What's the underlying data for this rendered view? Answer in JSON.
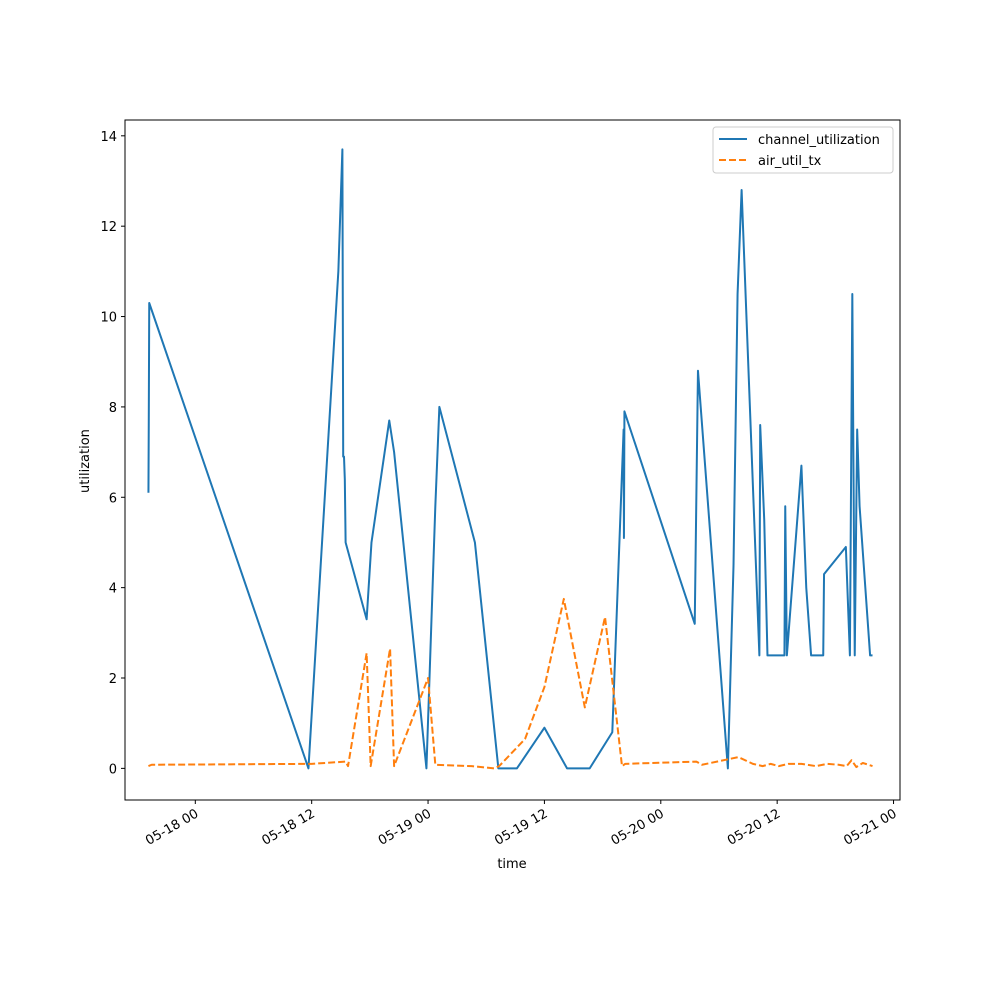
{
  "chart_data": {
    "type": "line",
    "title": "",
    "xlabel": "time",
    "ylabel": "utilization",
    "x_ticks": [
      {
        "t": "2023-05-18T00:00",
        "label": "05-18 00"
      },
      {
        "t": "2023-05-18T12:00",
        "label": "05-18 12"
      },
      {
        "t": "2023-05-19T00:00",
        "label": "05-19 00"
      },
      {
        "t": "2023-05-19T12:00",
        "label": "05-19 12"
      },
      {
        "t": "2023-05-20T00:00",
        "label": "05-20 00"
      },
      {
        "t": "2023-05-20T12:00",
        "label": "05-20 12"
      },
      {
        "t": "2023-05-21T00:00",
        "label": "05-21 00"
      }
    ],
    "y_ticks": [
      0,
      2,
      4,
      6,
      8,
      10,
      12,
      14
    ],
    "xlim": [
      "2023-05-17T16:45",
      "2023-05-21T00:40"
    ],
    "ylim": [
      -0.7,
      14.35
    ],
    "grid": false,
    "legend_position": "top-right",
    "series": [
      {
        "name": "channel_utilization",
        "color": "#1f77b4",
        "dash": "solid",
        "points": [
          [
            "2023-05-17T19:10",
            6.1
          ],
          [
            "2023-05-17T19:12",
            7.6
          ],
          [
            "2023-05-17T19:15",
            10.3
          ],
          [
            "2023-05-18T11:40",
            0.0
          ],
          [
            "2023-05-18T14:45",
            11.0
          ],
          [
            "2023-05-18T15:10",
            13.7
          ],
          [
            "2023-05-18T15:15",
            6.9
          ],
          [
            "2023-05-18T15:20",
            6.9
          ],
          [
            "2023-05-18T15:25",
            6.4
          ],
          [
            "2023-05-18T15:30",
            5.0
          ],
          [
            "2023-05-18T17:40",
            3.3
          ],
          [
            "2023-05-18T18:10",
            5.0
          ],
          [
            "2023-05-18T20:00",
            7.7
          ],
          [
            "2023-05-18T20:30",
            7.0
          ],
          [
            "2023-05-18T23:50",
            0.0
          ],
          [
            "2023-05-19T00:45",
            5.8
          ],
          [
            "2023-05-19T01:10",
            8.0
          ],
          [
            "2023-05-19T04:50",
            5.0
          ],
          [
            "2023-05-19T07:15",
            0.0
          ],
          [
            "2023-05-19T08:10",
            0.0
          ],
          [
            "2023-05-19T09:10",
            0.0
          ],
          [
            "2023-05-19T12:00",
            0.9
          ],
          [
            "2023-05-19T14:20",
            0.0
          ],
          [
            "2023-05-19T16:40",
            0.0
          ],
          [
            "2023-05-19T19:00",
            0.8
          ],
          [
            "2023-05-19T20:10",
            7.5
          ],
          [
            "2023-05-19T20:12",
            5.1
          ],
          [
            "2023-05-19T20:15",
            7.9
          ],
          [
            "2023-05-20T03:30",
            3.2
          ],
          [
            "2023-05-20T03:50",
            8.8
          ],
          [
            "2023-05-20T06:55",
            0.0
          ],
          [
            "2023-05-20T07:30",
            4.5
          ],
          [
            "2023-05-20T07:55",
            10.5
          ],
          [
            "2023-05-20T08:20",
            12.8
          ],
          [
            "2023-05-20T10:10",
            2.5
          ],
          [
            "2023-05-20T10:15",
            7.6
          ],
          [
            "2023-05-20T10:40",
            5.5
          ],
          [
            "2023-05-20T11:00",
            2.5
          ],
          [
            "2023-05-20T12:45",
            2.5
          ],
          [
            "2023-05-20T12:50",
            5.8
          ],
          [
            "2023-05-20T13:00",
            2.5
          ],
          [
            "2023-05-20T14:30",
            6.7
          ],
          [
            "2023-05-20T15:00",
            4.0
          ],
          [
            "2023-05-20T15:30",
            2.5
          ],
          [
            "2023-05-20T16:45",
            2.5
          ],
          [
            "2023-05-20T16:50",
            4.3
          ],
          [
            "2023-05-20T19:05",
            4.9
          ],
          [
            "2023-05-20T19:30",
            2.5
          ],
          [
            "2023-05-20T19:45",
            10.5
          ],
          [
            "2023-05-20T20:00",
            2.5
          ],
          [
            "2023-05-20T20:15",
            7.5
          ],
          [
            "2023-05-20T20:30",
            5.8
          ],
          [
            "2023-05-20T21:35",
            2.5
          ],
          [
            "2023-05-20T21:50",
            2.5
          ]
        ]
      },
      {
        "name": "air_util_tx",
        "color": "#ff7f0e",
        "dash": "dashed",
        "points": [
          [
            "2023-05-17T19:10",
            0.05
          ],
          [
            "2023-05-17T19:30",
            0.08
          ],
          [
            "2023-05-18T12:00",
            0.1
          ],
          [
            "2023-05-18T15:30",
            0.15
          ],
          [
            "2023-05-18T15:45",
            0.05
          ],
          [
            "2023-05-18T17:40",
            2.55
          ],
          [
            "2023-05-18T18:05",
            0.05
          ],
          [
            "2023-05-18T20:05",
            2.65
          ],
          [
            "2023-05-18T20:30",
            0.05
          ],
          [
            "2023-05-19T00:00",
            2.0
          ],
          [
            "2023-05-19T00:45",
            0.08
          ],
          [
            "2023-05-19T04:30",
            0.05
          ],
          [
            "2023-05-19T06:50",
            0.0
          ],
          [
            "2023-05-19T07:20",
            0.05
          ],
          [
            "2023-05-19T10:00",
            0.65
          ],
          [
            "2023-05-19T12:00",
            1.8
          ],
          [
            "2023-05-19T14:00",
            3.75
          ],
          [
            "2023-05-19T16:10",
            1.35
          ],
          [
            "2023-05-19T18:15",
            3.35
          ],
          [
            "2023-05-19T20:00",
            0.05
          ],
          [
            "2023-05-19T20:20",
            0.1
          ],
          [
            "2023-05-20T03:40",
            0.15
          ],
          [
            "2023-05-20T04:15",
            0.08
          ],
          [
            "2023-05-20T08:00",
            0.25
          ],
          [
            "2023-05-20T09:30",
            0.1
          ],
          [
            "2023-05-20T10:30",
            0.05
          ],
          [
            "2023-05-20T11:20",
            0.1
          ],
          [
            "2023-05-20T12:10",
            0.05
          ],
          [
            "2023-05-20T13:10",
            0.1
          ],
          [
            "2023-05-20T14:30",
            0.1
          ],
          [
            "2023-05-20T16:00",
            0.05
          ],
          [
            "2023-05-20T17:10",
            0.1
          ],
          [
            "2023-05-20T18:20",
            0.08
          ],
          [
            "2023-05-20T19:10",
            0.05
          ],
          [
            "2023-05-20T19:40",
            0.18
          ],
          [
            "2023-05-20T20:10",
            0.03
          ],
          [
            "2023-05-20T20:50",
            0.12
          ],
          [
            "2023-05-20T21:50",
            0.05
          ]
        ]
      }
    ]
  }
}
